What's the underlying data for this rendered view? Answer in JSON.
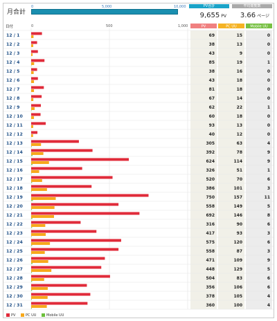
{
  "summary": {
    "title": "月合計",
    "axis_ticks": [
      "0",
      "5,000",
      "10,000"
    ],
    "total_pv_head": "PV合計",
    "total_pv_value": "9,655",
    "total_pv_unit": "PV",
    "avg_head": "平均閲覧数",
    "avg_value": "3.66",
    "avg_unit": "ページ",
    "total_bar_fraction": 0.9655
  },
  "legend": {
    "pv": "PV",
    "pc": "PC UU",
    "mobile": "Mobile UU"
  },
  "colors": {
    "pv": "#e02b3a",
    "pc": "#f7a81b",
    "mobile": "#6cbf3b",
    "pv_head": "#f08080",
    "pc_head": "#f5b324",
    "mobile_head": "#77c043",
    "summary_pv_head": "#1aa3c8",
    "summary_avg_head": "#aaaaaa",
    "total_bar": "#1a8fb0"
  },
  "chart_data": {
    "type": "bar",
    "orientation": "horizontal",
    "header_label": "日付",
    "axis_ticks": [
      "0",
      "500",
      "1,000"
    ],
    "xlim": [
      0,
      1000
    ],
    "column_headers": [
      "PV",
      "PC UU",
      "Mobile UU"
    ],
    "categories": [
      "12 / 1",
      "12 / 2",
      "12 / 3",
      "12 / 4",
      "12 / 5",
      "12 / 6",
      "12 / 7",
      "12 / 8",
      "12 / 9",
      "12 / 10",
      "12 / 11",
      "12 / 12",
      "12 / 13",
      "12 / 14",
      "12 / 15",
      "12 / 16",
      "12 / 17",
      "12 / 18",
      "12 / 19",
      "12 / 20",
      "12 / 21",
      "12 / 22",
      "12 / 23",
      "12 / 24",
      "12 / 25",
      "12 / 26",
      "12 / 27",
      "12 / 28",
      "12 / 29",
      "12 / 30",
      "12 / 31"
    ],
    "series": [
      {
        "name": "PV",
        "values": [
          69,
          38,
          43,
          85,
          38,
          43,
          81,
          67,
          62,
          60,
          93,
          40,
          305,
          392,
          624,
          326,
          520,
          386,
          750,
          558,
          692,
          316,
          417,
          575,
          558,
          471,
          448,
          504,
          356,
          378,
          360
        ]
      },
      {
        "name": "PC UU",
        "values": [
          15,
          13,
          9,
          19,
          16,
          18,
          18,
          14,
          22,
          18,
          13,
          12,
          63,
          78,
          114,
          51,
          70,
          101,
          157,
          149,
          146,
          90,
          93,
          120,
          87,
          109,
          129,
          83,
          106,
          105,
          100
        ]
      },
      {
        "name": "Mobile UU",
        "values": [
          0,
          0,
          0,
          1,
          0,
          0,
          0,
          0,
          1,
          0,
          0,
          0,
          4,
          9,
          9,
          1,
          6,
          3,
          11,
          5,
          8,
          6,
          3,
          6,
          3,
          9,
          5,
          6,
          6,
          4,
          4
        ]
      }
    ]
  }
}
